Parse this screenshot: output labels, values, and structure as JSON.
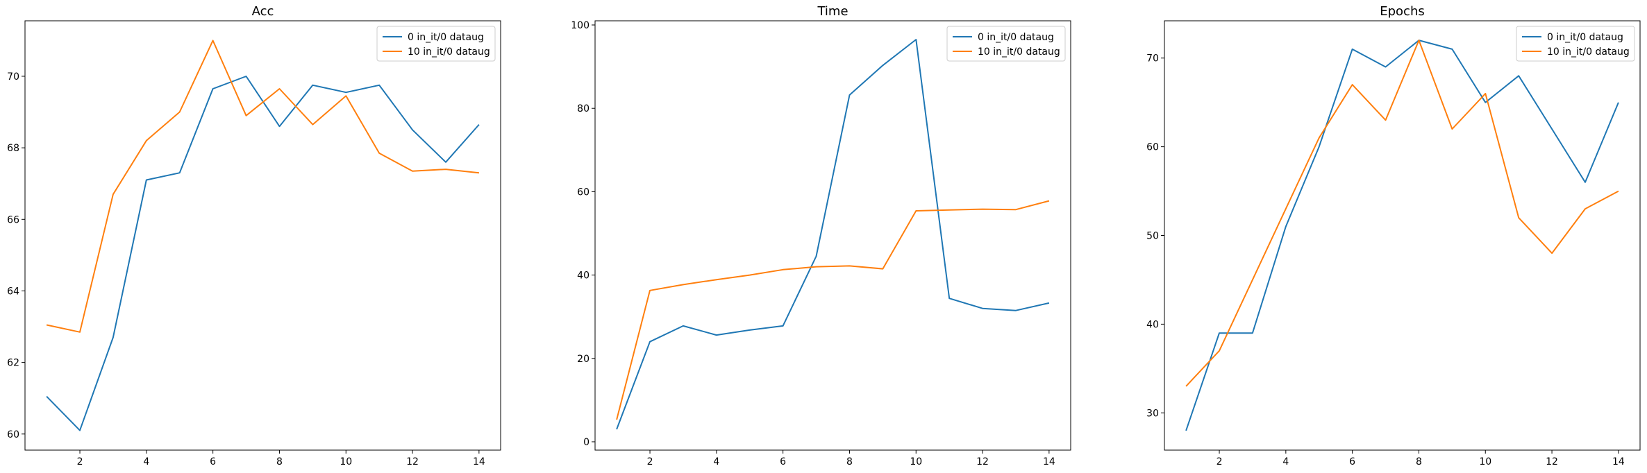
{
  "chart_data": [
    {
      "type": "line",
      "title": "Acc",
      "xlabel": "",
      "ylabel": "",
      "xlim": [
        0.35,
        14.65
      ],
      "ylim": [
        59.55,
        71.55
      ],
      "xticks": [
        2,
        4,
        6,
        8,
        10,
        12,
        14
      ],
      "yticks": [
        60,
        62,
        64,
        66,
        68,
        70
      ],
      "legend": "top-right",
      "grid": false,
      "x": [
        1,
        2,
        3,
        4,
        5,
        6,
        7,
        8,
        9,
        10,
        11,
        12,
        13,
        14
      ],
      "series": [
        {
          "name": "0 in_it/0 dataug",
          "color": "#1f77b4",
          "values": [
            61.05,
            60.1,
            62.7,
            67.1,
            67.3,
            69.65,
            70.0,
            68.6,
            69.75,
            69.55,
            69.75,
            68.5,
            67.6,
            68.65
          ]
        },
        {
          "name": "10 in_it/0 dataug",
          "color": "#ff7f0e",
          "values": [
            63.05,
            62.85,
            66.7,
            68.2,
            69.0,
            71.0,
            68.9,
            69.65,
            68.65,
            69.45,
            67.85,
            67.35,
            67.4,
            67.3
          ]
        }
      ]
    },
    {
      "type": "line",
      "title": "Time",
      "xlabel": "",
      "ylabel": "",
      "xlim": [
        0.35,
        14.65
      ],
      "ylim": [
        -2,
        101
      ],
      "xticks": [
        2,
        4,
        6,
        8,
        10,
        12,
        14
      ],
      "yticks": [
        0,
        20,
        40,
        60,
        80,
        100
      ],
      "legend": "top-right",
      "grid": false,
      "x": [
        1,
        2,
        3,
        4,
        5,
        6,
        7,
        8,
        9,
        10,
        11,
        12,
        13,
        14
      ],
      "series": [
        {
          "name": "0 in_it/0 dataug",
          "color": "#1f77b4",
          "values": [
            3.0,
            24.0,
            27.8,
            25.6,
            26.8,
            27.8,
            44.5,
            83.2,
            90.3,
            96.5,
            34.4,
            32.0,
            31.5,
            33.3
          ]
        },
        {
          "name": "10 in_it/0 dataug",
          "color": "#ff7f0e",
          "values": [
            5.3,
            36.3,
            37.7,
            38.9,
            40.0,
            41.3,
            42.0,
            42.2,
            41.5,
            55.4,
            55.6,
            55.8,
            55.7,
            57.8
          ]
        }
      ]
    },
    {
      "type": "line",
      "title": "Epochs",
      "xlabel": "",
      "ylabel": "",
      "xlim": [
        0.35,
        14.65
      ],
      "ylim": [
        25.8,
        74.2
      ],
      "xticks": [
        2,
        4,
        6,
        8,
        10,
        12,
        14
      ],
      "yticks": [
        30,
        40,
        50,
        60,
        70
      ],
      "legend": "top-right",
      "grid": false,
      "x": [
        1,
        2,
        3,
        4,
        5,
        6,
        7,
        8,
        9,
        10,
        11,
        12,
        13,
        14
      ],
      "series": [
        {
          "name": "0 in_it/0 dataug",
          "color": "#1f77b4",
          "values": [
            28,
            39,
            39,
            51,
            60,
            71,
            69,
            72,
            71,
            65,
            68,
            62,
            56,
            65
          ]
        },
        {
          "name": "10 in_it/0 dataug",
          "color": "#ff7f0e",
          "values": [
            33,
            37,
            45,
            53,
            61,
            67,
            63,
            72,
            62,
            66,
            52,
            48,
            53,
            55
          ]
        }
      ]
    }
  ]
}
